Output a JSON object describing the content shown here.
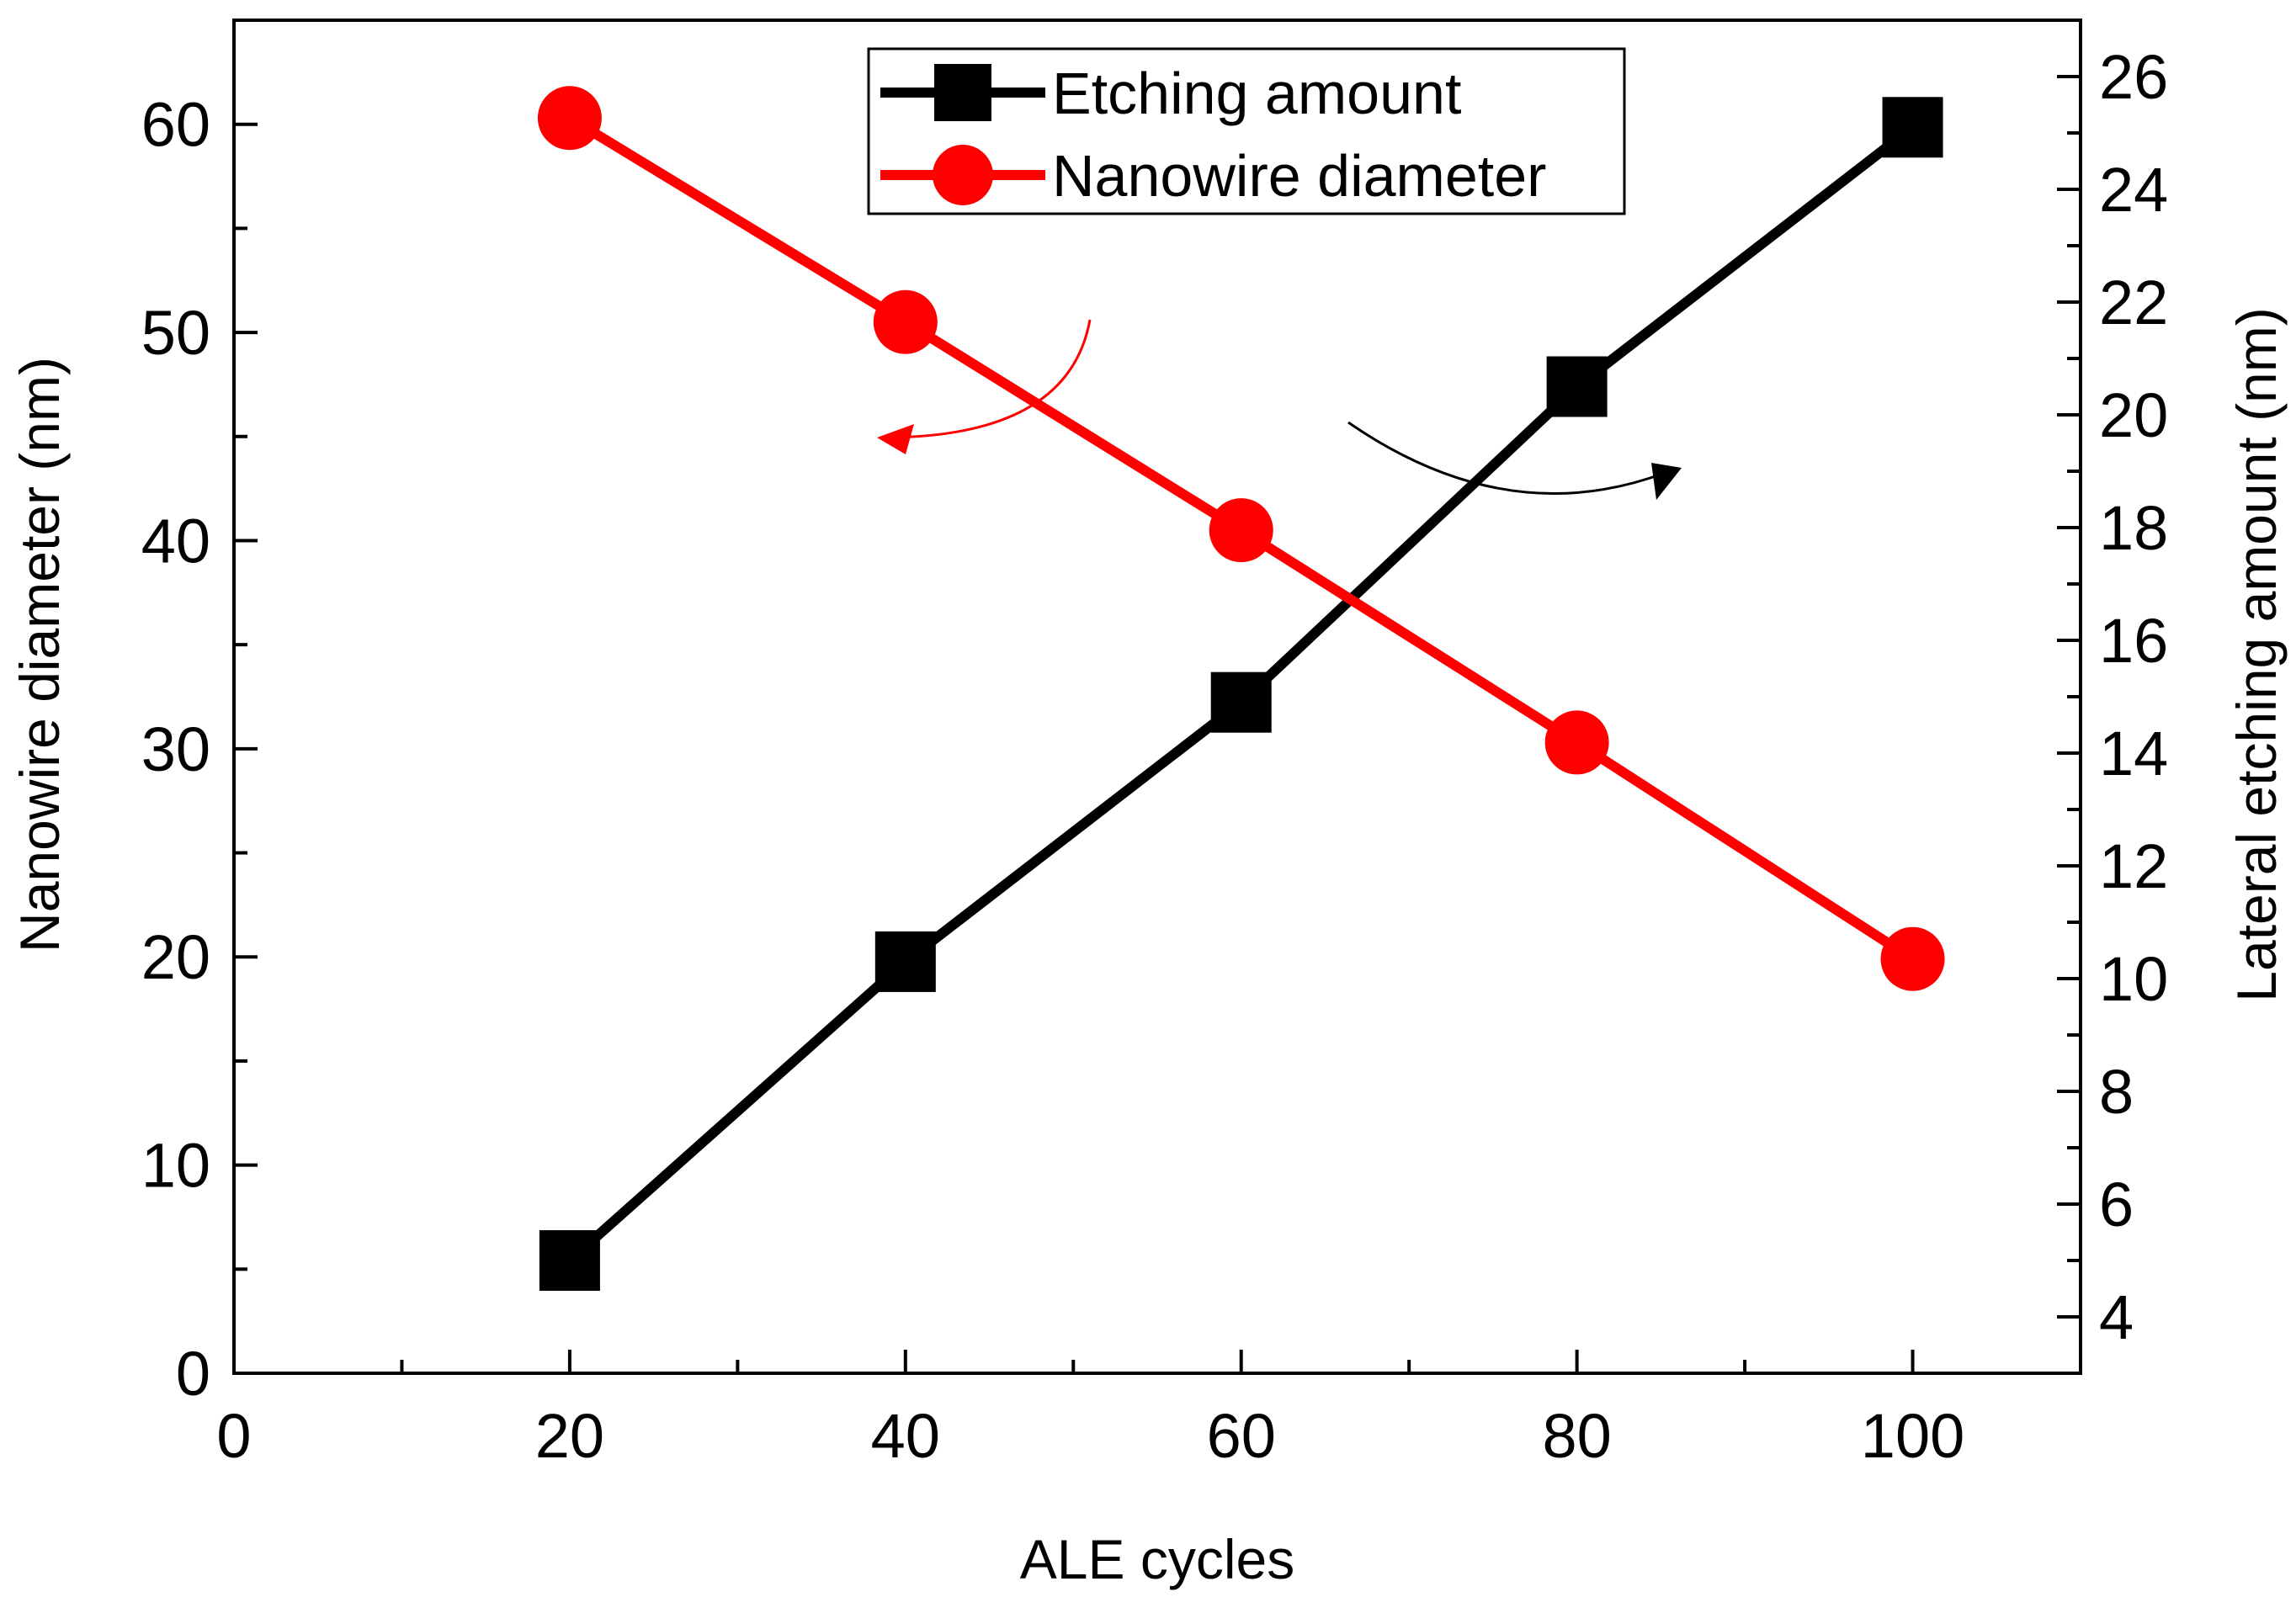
{
  "chart_data": {
    "type": "line",
    "xlabel": "ALE  cycles",
    "ylabel_left": "Nanowire diameter (nm)",
    "ylabel_right": "Lateral etching amount (nm)",
    "xlim": [
      0,
      110
    ],
    "ylim_left": [
      0,
      65
    ],
    "ylim_right": [
      3,
      27
    ],
    "x_ticks": [
      0,
      20,
      40,
      60,
      80,
      100
    ],
    "y_left_ticks": [
      0,
      10,
      20,
      30,
      40,
      50,
      60
    ],
    "y_right_ticks": [
      4,
      6,
      8,
      10,
      12,
      14,
      16,
      18,
      20,
      22,
      24,
      26
    ],
    "grid": false,
    "legend_position": "top-center",
    "series": [
      {
        "name": "Etching amount",
        "axis": "right",
        "marker": "square",
        "color": "#000000",
        "x": [
          20,
          40,
          60,
          80,
          100
        ],
        "values": [
          5.0,
          10.3,
          14.9,
          20.5,
          25.1
        ]
      },
      {
        "name": "Nanowire diameter",
        "axis": "left",
        "marker": "circle",
        "color": "#ff0000",
        "x": [
          20,
          40,
          60,
          80,
          100
        ],
        "values": [
          60.3,
          50.5,
          40.5,
          30.3,
          19.9
        ]
      }
    ]
  }
}
